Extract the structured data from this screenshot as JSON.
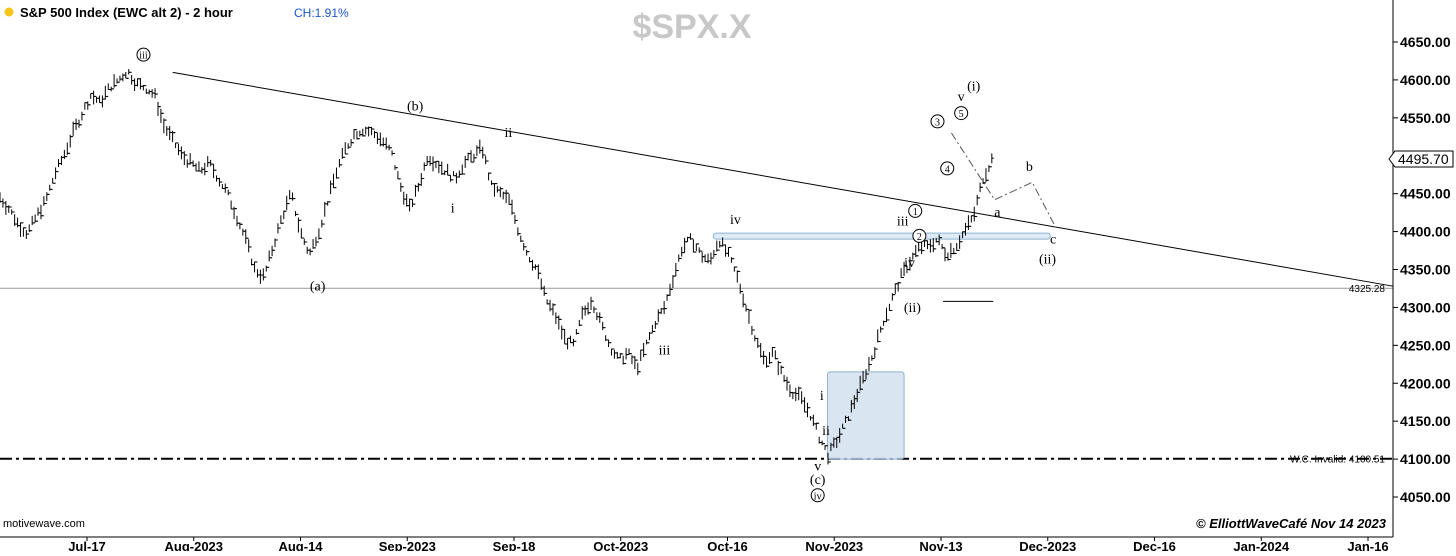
{
  "header": {
    "title": "S&P 500 Index (EWC alt 2) - 2 hour",
    "change": "CH:1.91%",
    "symbol_watermark": "$SPX.X",
    "source": "motivewave.com",
    "copyright": "© ElliottWaveCafé  Nov 14 2023",
    "dot_color": "#f5c518"
  },
  "chart_data": {
    "type": "ohlc",
    "ylim": [
      4020,
      4700
    ],
    "y_ticks": [
      "4650.00",
      "4600.00",
      "4550.00",
      "4500.00",
      "4450.00",
      "4400.00",
      "4350.00",
      "4300.00",
      "4250.00",
      "4200.00",
      "4150.00",
      "4100.00",
      "4050.00"
    ],
    "x_ticks": [
      "Jul-17",
      "Aug-2023",
      "Aug-14",
      "Sep-2023",
      "Sep-18",
      "Oct-2023",
      "Oct-16",
      "Nov-2023",
      "Nov-13",
      "Dec-2023",
      "Dec-16",
      "Jan-2024",
      "Jan-16"
    ],
    "last_price": "4495.70",
    "levels": [
      {
        "label": "4325.28",
        "value": 4325.28
      },
      {
        "label": "W.C. Invalid: 4100.51",
        "value": 4100.51
      }
    ],
    "trendline": {
      "from_price": 4610,
      "to_price": 4328
    },
    "resistance_zone": {
      "from": 4390,
      "to": 4398
    },
    "bottom_box": {
      "from": 4215,
      "to": 4100
    },
    "price_path": [
      4445,
      4430,
      4410,
      4398,
      4420,
      4440,
      4475,
      4500,
      4530,
      4555,
      4580,
      4570,
      4590,
      4600,
      4612,
      4595,
      4590,
      4580,
      4540,
      4520,
      4500,
      4490,
      4480,
      4490,
      4470,
      4450,
      4420,
      4390,
      4350,
      4340,
      4380,
      4420,
      4450,
      4400,
      4370,
      4400,
      4440,
      4480,
      4510,
      4530,
      4535,
      4530,
      4520,
      4505,
      4460,
      4430,
      4460,
      4500,
      4490,
      4480,
      4470,
      4490,
      4500,
      4510,
      4460,
      4450,
      4440,
      4400,
      4370,
      4350,
      4310,
      4290,
      4260,
      4250,
      4290,
      4310,
      4280,
      4250,
      4230,
      4240,
      4220,
      4250,
      4280,
      4300,
      4340,
      4380,
      4390,
      4370,
      4360,
      4390,
      4370,
      4340,
      4300,
      4260,
      4230,
      4240,
      4210,
      4190,
      4180,
      4160,
      4130,
      4105,
      4125,
      4150,
      4180,
      4210,
      4240,
      4280,
      4310,
      4340,
      4360,
      4380,
      4380,
      4390,
      4370,
      4380,
      4400,
      4420,
      4470,
      4495
    ],
    "wave_labels": [
      {
        "text": "iii",
        "circled": true,
        "price": 4628,
        "pos": 0.103
      },
      {
        "text": "(b)",
        "price": 4560,
        "pos": 0.298
      },
      {
        "text": "ii",
        "price": 4525,
        "pos": 0.365
      },
      {
        "text": "i",
        "price": 4425,
        "pos": 0.325
      },
      {
        "text": "(a)",
        "price": 4322,
        "pos": 0.228
      },
      {
        "text": "iv",
        "price": 4410,
        "pos": 0.528
      },
      {
        "text": "iii",
        "price": 4238,
        "pos": 0.477
      },
      {
        "text": "iii",
        "price": 4408,
        "pos": 0.648
      },
      {
        "text": "iv",
        "price": 4353,
        "pos": 0.653
      },
      {
        "text": "(ii)",
        "price": 4294,
        "pos": 0.655
      },
      {
        "text": "i",
        "price": 4178,
        "pos": 0.59
      },
      {
        "text": "ii",
        "price": 4132,
        "pos": 0.593
      },
      {
        "text": "v",
        "price": 4085,
        "pos": 0.587
      },
      {
        "text": "(c)",
        "price": 4067,
        "pos": 0.587
      },
      {
        "text": "iv",
        "circled": true,
        "price": 4047,
        "pos": 0.587
      },
      {
        "text": "1",
        "circled": true,
        "price": 4422,
        "pos": 0.657
      },
      {
        "text": "2",
        "circled": true,
        "price": 4389,
        "pos": 0.66
      },
      {
        "text": "3",
        "circled": true,
        "price": 4540,
        "pos": 0.673
      },
      {
        "text": "4",
        "circled": true,
        "price": 4478,
        "pos": 0.68
      },
      {
        "text": "5",
        "circled": true,
        "price": 4551,
        "pos": 0.69
      },
      {
        "text": "v",
        "price": 4572,
        "pos": 0.69
      },
      {
        "text": "(i)",
        "price": 4586,
        "pos": 0.699
      },
      {
        "text": "a",
        "price": 4420,
        "pos": 0.716
      },
      {
        "text": "b",
        "price": 4480,
        "pos": 0.739
      },
      {
        "text": "c",
        "price": 4384,
        "pos": 0.756
      },
      {
        "text": "(ii)",
        "price": 4358,
        "pos": 0.752
      }
    ],
    "projection": [
      {
        "pos": 0.683,
        "price": 4530
      },
      {
        "pos": 0.714,
        "price": 4442
      },
      {
        "pos": 0.741,
        "price": 4465
      },
      {
        "pos": 0.758,
        "price": 4405
      }
    ]
  }
}
